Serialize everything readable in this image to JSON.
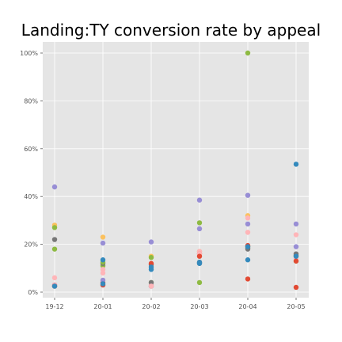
{
  "chart_data": {
    "type": "scatter",
    "title": "Landing:TY conversion rate by appeal",
    "xlabel": "",
    "ylabel": "",
    "categories": [
      "19-12",
      "20-01",
      "20-02",
      "20-03",
      "20-04",
      "20-05"
    ],
    "yticks": [
      "0%",
      "20%",
      "40%",
      "60%",
      "80%",
      "100%"
    ],
    "ylim": [
      0,
      100
    ],
    "grid": true,
    "background": "#e5e5e5",
    "series": [
      {
        "color": "#988ed5",
        "values": [
          44,
          20.5,
          21,
          38.5,
          40.5,
          28.5
        ]
      },
      {
        "color": "#fbc15e",
        "values": [
          28,
          23,
          15,
          17,
          32,
          15
        ]
      },
      {
        "color": "#8eba42",
        "values": [
          27,
          11,
          14.5,
          29,
          100,
          15
        ]
      },
      {
        "color": "#777777",
        "values": [
          22,
          12,
          11.5,
          12.5,
          18.5,
          16
        ]
      },
      {
        "color": "#8eba42",
        "values": [
          18,
          12.5,
          4,
          4,
          19,
          13
        ]
      },
      {
        "color": "#ffb5b8",
        "values": [
          6,
          8,
          3,
          17,
          25,
          24
        ]
      },
      {
        "color": "#e24a33",
        "values": [
          3,
          4,
          2.5,
          16,
          5.5,
          2
        ]
      },
      {
        "color": "#348abd",
        "values": [
          2.5,
          13.5,
          9.5,
          12.5,
          13.5,
          53.5
        ]
      },
      {
        "color": "#777777",
        "values": [
          2.5,
          3,
          4,
          12,
          18,
          15.5
        ]
      },
      {
        "color": "#988ed5",
        "values": [
          3,
          5,
          2.5,
          26.5,
          28.5,
          19
        ]
      },
      {
        "color": "#ffb5b8",
        "values": [
          3,
          9.5,
          2.5,
          16,
          31,
          14
        ]
      },
      {
        "color": "#e24a33",
        "values": [
          2.5,
          3,
          12,
          15,
          19.5,
          13
        ]
      },
      {
        "color": "#348abd",
        "values": [
          2.5,
          3.5,
          10.5,
          12,
          19,
          15
        ]
      }
    ]
  }
}
